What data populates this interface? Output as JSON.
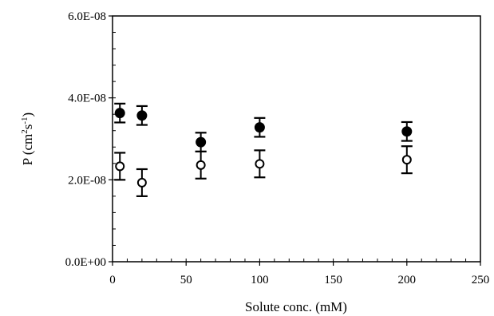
{
  "chart_data": {
    "type": "scatter",
    "title": "",
    "xlabel": "Solute conc. (mM)",
    "ylabel_main": "P (cm",
    "ylabel_sup1": "2",
    "ylabel_mid": "s",
    "ylabel_sup2": "-1",
    "ylabel_end": ")",
    "xlim": [
      0,
      250
    ],
    "ylim": [
      0,
      6e-08
    ],
    "x_ticks": [
      0,
      50,
      100,
      150,
      200,
      250
    ],
    "x_tick_labels": [
      "0",
      "50",
      "100",
      "150",
      "200",
      "250"
    ],
    "y_ticks": [
      0,
      2e-08,
      4e-08,
      6e-08
    ],
    "y_tick_labels": [
      "0.0E+00",
      "2.0E-08",
      "4.0E-08",
      "6.0E-08"
    ],
    "y_minor_step": 4e-09,
    "x_minor_step": 10,
    "grid": false,
    "series": [
      {
        "marker": "filled-circle",
        "color": "#000000",
        "x": [
          5,
          20,
          60,
          100,
          200
        ],
        "y": [
          3.63e-08,
          3.57e-08,
          2.92e-08,
          3.28e-08,
          3.18e-08
        ],
        "err": [
          2.3e-09,
          2.3e-09,
          2.3e-09,
          2.3e-09,
          2.3e-09
        ]
      },
      {
        "marker": "open-circle",
        "color": "#000000",
        "x": [
          5,
          20,
          60,
          100,
          200
        ],
        "y": [
          2.33e-08,
          1.93e-08,
          2.36e-08,
          2.39e-08,
          2.49e-08
        ],
        "err": [
          3.3e-09,
          3.3e-09,
          3.3e-09,
          3.3e-09,
          3.3e-09
        ]
      }
    ]
  }
}
